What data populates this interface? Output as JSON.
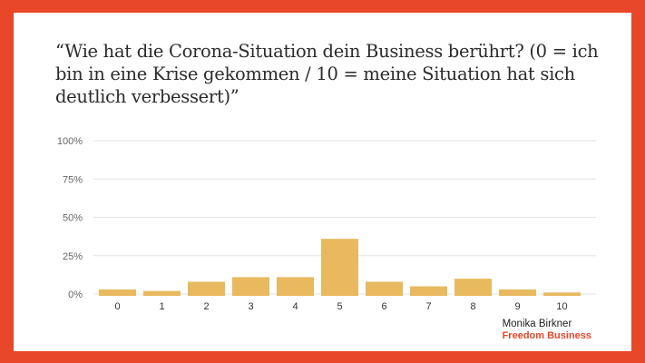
{
  "title": "“Wie hat die Corona-Situation dein Business berührt? (0 = ich bin in eine Krise gekommen / 10 = meine Situation hat sich deutlich verbessert)”",
  "brand": {
    "name": "Monika Birkner",
    "subtitle": "Freedom Business"
  },
  "colors": {
    "frame": "#e8472a",
    "bar": "#e8b95e",
    "grid": "#e3e3e3"
  },
  "chart_data": {
    "type": "bar",
    "title": "“Wie hat die Corona-Situation dein Business berührt? (0 = ich bin in eine Krise gekommen / 10 = meine Situation hat sich deutlich verbessert)”",
    "xlabel": "",
    "ylabel": "",
    "categories": [
      "0",
      "1",
      "2",
      "3",
      "4",
      "5",
      "6",
      "7",
      "8",
      "9",
      "10"
    ],
    "values": [
      3,
      2,
      8,
      11,
      11,
      36,
      8,
      5,
      10,
      3,
      1
    ],
    "ylim": [
      0,
      100
    ],
    "yticks": [
      "0%",
      "25%",
      "50%",
      "75%",
      "100%"
    ],
    "ytick_values": [
      0,
      25,
      50,
      75,
      100
    ],
    "unit": "%",
    "grid": true,
    "legend": "none"
  }
}
